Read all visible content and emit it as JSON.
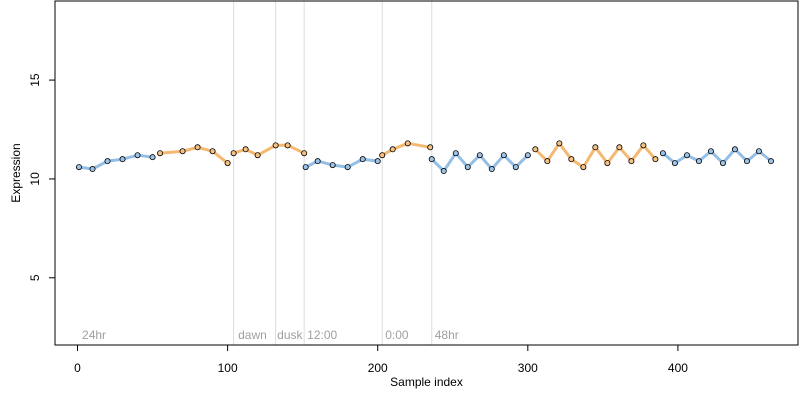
{
  "chart_data": {
    "type": "scatter",
    "title": "",
    "xlabel": "Sample index",
    "ylabel": "Expression",
    "xlim": [
      -15,
      480
    ],
    "ylim": [
      1.6,
      19.0
    ],
    "x_ticks": [
      0,
      100,
      200,
      300,
      400
    ],
    "y_ticks": [
      5,
      10,
      15
    ],
    "grid": false,
    "region_boundaries": [
      104,
      132,
      151,
      203,
      236
    ],
    "region_labels": [
      {
        "text": "24hr",
        "x": 3
      },
      {
        "text": "dawn",
        "x": 107
      },
      {
        "text": "dusk",
        "x": 133
      },
      {
        "text": "12:00",
        "x": 153
      },
      {
        "text": "0:00",
        "x": 205
      },
      {
        "text": "48hr",
        "x": 238
      }
    ],
    "colors": {
      "light_fill": "#f5c185",
      "dark_fill": "#9cc3e8",
      "trend_light": "#f0a040",
      "trend_dark": "#6fa8dc"
    },
    "series": [
      {
        "phase": "dark",
        "x": [
          1,
          10,
          20,
          30,
          40,
          50
        ],
        "y": [
          10.6,
          10.5,
          10.9,
          11.0,
          11.2,
          11.1
        ]
      },
      {
        "phase": "light",
        "x": [
          55,
          70,
          80,
          90,
          100
        ],
        "y": [
          11.3,
          11.4,
          11.6,
          11.4,
          10.8
        ]
      },
      {
        "phase": "light",
        "x": [
          104,
          112,
          120,
          132,
          140,
          151
        ],
        "y": [
          11.3,
          11.5,
          11.2,
          11.7,
          11.7,
          11.3
        ]
      },
      {
        "phase": "dark",
        "x": [
          152,
          160,
          170,
          180,
          190,
          200
        ],
        "y": [
          10.6,
          10.9,
          10.7,
          10.6,
          11.0,
          10.9
        ]
      },
      {
        "phase": "light",
        "x": [
          203,
          210,
          220,
          235
        ],
        "y": [
          11.2,
          11.5,
          11.8,
          11.6
        ]
      },
      {
        "phase": "dark",
        "x": [
          236,
          244,
          252,
          260,
          268,
          276,
          284,
          292,
          300
        ],
        "y": [
          11.0,
          10.4,
          11.3,
          10.6,
          11.2,
          10.5,
          11.2,
          10.6,
          11.2
        ]
      },
      {
        "phase": "light",
        "x": [
          305,
          313,
          321,
          329,
          337,
          345,
          353,
          361,
          369,
          377,
          385
        ],
        "y": [
          11.5,
          10.9,
          11.8,
          11.0,
          10.6,
          11.6,
          10.8,
          11.6,
          10.9,
          11.7,
          11.0
        ]
      },
      {
        "phase": "dark",
        "x": [
          390,
          398,
          406,
          414,
          422,
          430,
          438,
          446,
          454,
          462
        ],
        "y": [
          11.3,
          10.8,
          11.2,
          10.9,
          11.4,
          10.8,
          11.5,
          10.9,
          11.4,
          10.9
        ]
      }
    ]
  }
}
